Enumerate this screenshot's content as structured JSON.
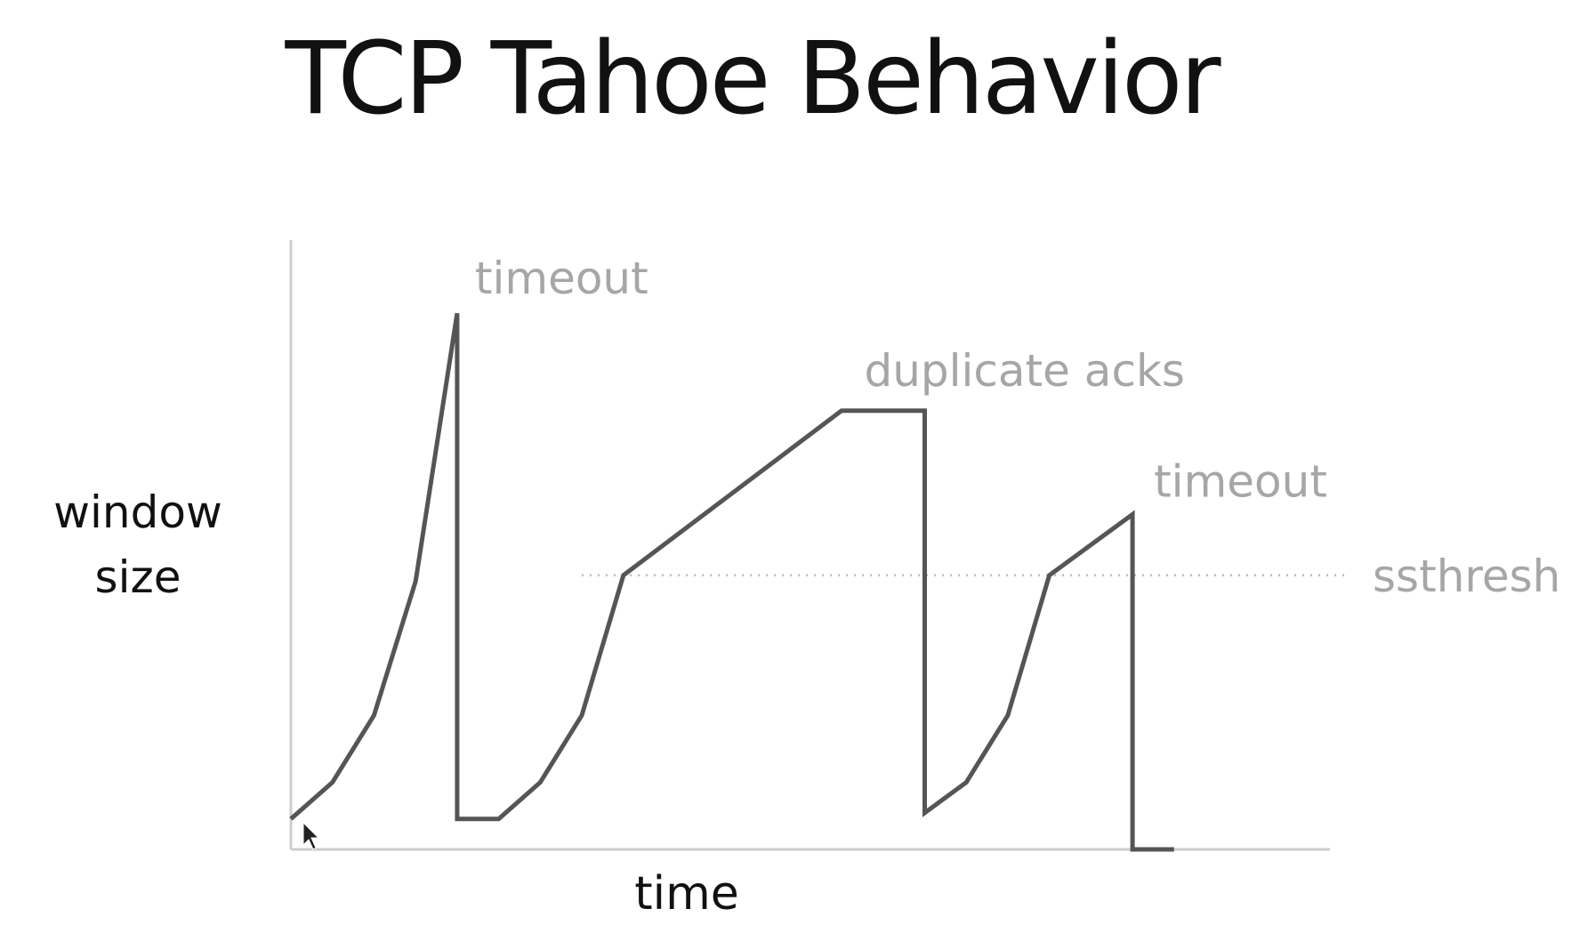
{
  "slide": {
    "title": "TCP Tahoe Behavior"
  },
  "chart_data": {
    "type": "line",
    "title": "TCP Tahoe Behavior",
    "xlabel": "time",
    "ylabel": [
      "window",
      "size"
    ],
    "xlim": [
      0,
      100
    ],
    "ylim": [
      0,
      100
    ],
    "grid": false,
    "legend": "none",
    "series": [
      {
        "x": [
          0,
          4,
          8,
          12,
          16,
          16,
          20,
          24,
          28,
          32,
          53,
          61,
          61,
          65,
          69,
          73,
          81,
          81,
          85
        ],
        "y": [
          5,
          11,
          22,
          44,
          88,
          5,
          5,
          11,
          22,
          45,
          72,
          72,
          6,
          11,
          22,
          45,
          55,
          0,
          0
        ],
        "color": "#555555"
      }
    ],
    "threshold": {
      "label": "ssthresh",
      "y": 45,
      "color": "#bbbbbb"
    },
    "annotations": [
      {
        "text": "timeout",
        "x": 16,
        "y": 88,
        "color": "#a6a6a6"
      },
      {
        "text": "duplicate acks",
        "x": 61,
        "y": 72,
        "color": "#a6a6a6"
      },
      {
        "text": "timeout",
        "x": 81,
        "y": 55,
        "color": "#a6a6a6"
      }
    ],
    "axis_color": "#cccccc",
    "label_color": "#111111"
  }
}
